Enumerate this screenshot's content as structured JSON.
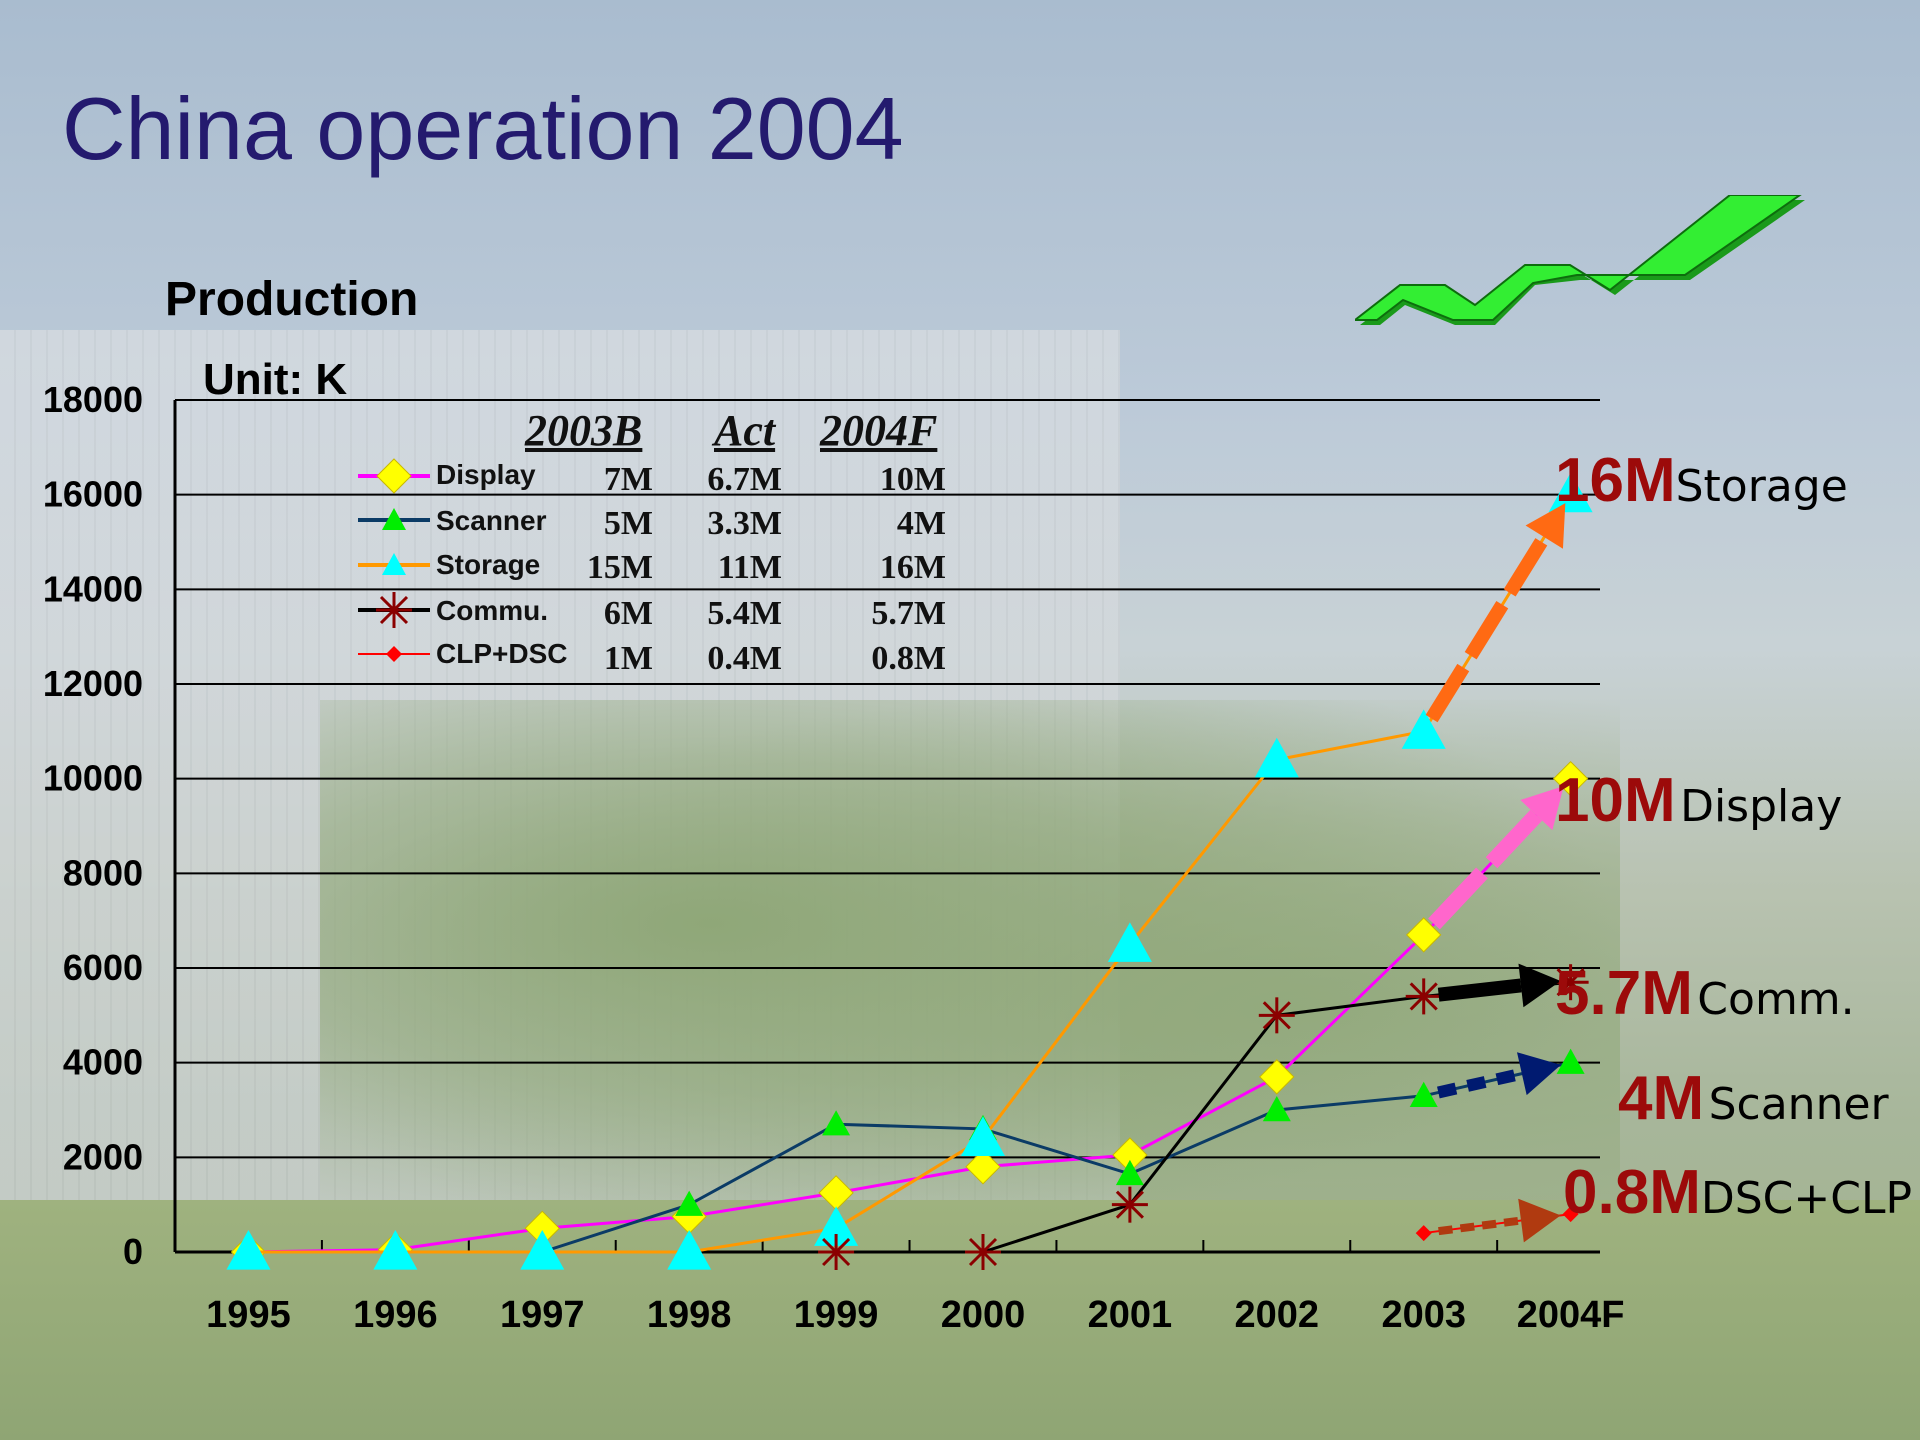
{
  "slide": {
    "title": "China operation 2004"
  },
  "chart_data": {
    "type": "line",
    "title": "Production",
    "unit_label": "Unit: K",
    "categories": [
      "1995",
      "1996",
      "1997",
      "1998",
      "1999",
      "2000",
      "2001",
      "2002",
      "2003",
      "2004F"
    ],
    "ylim": [
      0,
      18000
    ],
    "yticks": [
      "0",
      "2000",
      "4000",
      "6000",
      "8000",
      "10000",
      "12000",
      "14000",
      "16000",
      "18000"
    ],
    "series": [
      {
        "name": "Display",
        "color": "#ff00ff",
        "marker": "diamond",
        "marker_color": "#ffff00",
        "values": [
          0,
          50,
          500,
          750,
          1250,
          1800,
          2050,
          3700,
          6700,
          10000
        ]
      },
      {
        "name": "Scanner",
        "color": "#0b3b66",
        "marker": "triangle",
        "marker_color": "#00ee00",
        "values": [
          0,
          0,
          0,
          1000,
          2700,
          2600,
          1650,
          3000,
          3300,
          4000
        ]
      },
      {
        "name": "Storage",
        "color": "#ff9900",
        "marker": "triangle",
        "marker_color": "#00ffff",
        "values": [
          0,
          0,
          0,
          0,
          500,
          2400,
          6500,
          10400,
          11000,
          16000
        ]
      },
      {
        "name": "Commu.",
        "color": "#000000",
        "marker": "asterisk",
        "marker_color": "#8b0000",
        "values": [
          null,
          null,
          null,
          null,
          0,
          0,
          1000,
          5000,
          5400,
          5700
        ]
      },
      {
        "name": "CLP+DSC",
        "color": "#ff0000",
        "marker": "small-diamond",
        "marker_color": "#ff0000",
        "values": [
          null,
          null,
          null,
          null,
          null,
          null,
          null,
          null,
          400,
          800
        ]
      }
    ],
    "table": {
      "headers": [
        "2003B",
        "Act",
        "2004F"
      ],
      "rows": [
        {
          "name": "Display",
          "cells": [
            "7M",
            "6.7M",
            "10M"
          ]
        },
        {
          "name": "Scanner",
          "cells": [
            "5M",
            "3.3M",
            "4M"
          ]
        },
        {
          "name": "Storage",
          "cells": [
            "15M",
            "11M",
            "16M"
          ]
        },
        {
          "name": "Commu.",
          "cells": [
            "6M",
            "5.4M",
            "5.7M"
          ]
        },
        {
          "name": "CLP+DSC",
          "cells": [
            "1M",
            "0.4M",
            "0.8M"
          ]
        }
      ]
    },
    "callouts": [
      {
        "value": "16M",
        "label": "Storage"
      },
      {
        "value": "10M",
        "label": "Display"
      },
      {
        "value": "5.7M",
        "label": "Comm."
      },
      {
        "value": "4M",
        "label": "Scanner"
      },
      {
        "value": "0.8M",
        "label": "DSC+CLP"
      }
    ]
  },
  "colors": {
    "title": "#241a6e",
    "callout_value": "#9c0a0a",
    "logo_green": "#22dd22"
  }
}
